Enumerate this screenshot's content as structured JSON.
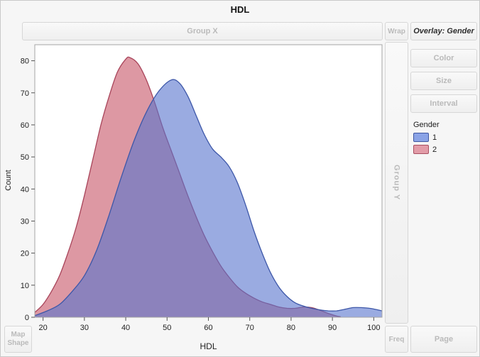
{
  "title": "HDL",
  "zones": {
    "group_x": "Group X",
    "wrap": "Wrap",
    "overlay": "Overlay: Gender",
    "color": "Color",
    "size": "Size",
    "interval": "Interval",
    "group_y": "Group Y",
    "map_shape": "Map Shape",
    "freq": "Freq",
    "page": "Page"
  },
  "axes": {
    "x_label": "HDL",
    "y_label": "Count"
  },
  "legend": {
    "title": "Gender",
    "items": [
      {
        "label": "1",
        "color": "#8AA3E6",
        "border": "#3F57A0"
      },
      {
        "label": "2",
        "color": "#E29CA8",
        "border": "#A84F61"
      }
    ]
  },
  "chart_data": {
    "type": "area",
    "title": "HDL",
    "xlabel": "HDL",
    "ylabel": "Count",
    "xlim": [
      18,
      102
    ],
    "ylim": [
      0,
      85
    ],
    "x_ticks": [
      20,
      30,
      40,
      50,
      60,
      70,
      80,
      90,
      100
    ],
    "y_ticks": [
      0,
      10,
      20,
      30,
      40,
      50,
      60,
      70,
      80
    ],
    "grid": false,
    "legend_title": "Gender",
    "legend_position": "right",
    "series": [
      {
        "name": "2",
        "fill": "rgba(198,83,101,0.6)",
        "stroke": "#A8445A",
        "points": [
          [
            18,
            1.5
          ],
          [
            20,
            4
          ],
          [
            22,
            8
          ],
          [
            24,
            13
          ],
          [
            26,
            20
          ],
          [
            28,
            28
          ],
          [
            30,
            38
          ],
          [
            32,
            49
          ],
          [
            34,
            60
          ],
          [
            36,
            69
          ],
          [
            38,
            76.5
          ],
          [
            40,
            80.5
          ],
          [
            41,
            81
          ],
          [
            43,
            79
          ],
          [
            45,
            74
          ],
          [
            47,
            67
          ],
          [
            49,
            59
          ],
          [
            51,
            52
          ],
          [
            53,
            45
          ],
          [
            55,
            38
          ],
          [
            57,
            31.5
          ],
          [
            59,
            25.5
          ],
          [
            61,
            20.5
          ],
          [
            63,
            16
          ],
          [
            65,
            12.5
          ],
          [
            67,
            9.5
          ],
          [
            69,
            7.5
          ],
          [
            71,
            6
          ],
          [
            73,
            4.8
          ],
          [
            75,
            4
          ],
          [
            77,
            3.2
          ],
          [
            79,
            2.8
          ],
          [
            81,
            2.8
          ],
          [
            83,
            3.2
          ],
          [
            85,
            3
          ],
          [
            87,
            2.2
          ],
          [
            89,
            1.2
          ],
          [
            91,
            0.4
          ],
          [
            92,
            0.15
          ]
        ]
      },
      {
        "name": "1",
        "fill": "rgba(86,115,205,0.6)",
        "stroke": "#3D57A8",
        "points": [
          [
            18,
            0.5
          ],
          [
            21,
            2
          ],
          [
            24,
            4
          ],
          [
            27,
            8
          ],
          [
            30,
            13
          ],
          [
            33,
            21
          ],
          [
            36,
            32
          ],
          [
            39,
            44
          ],
          [
            42,
            55
          ],
          [
            45,
            64
          ],
          [
            48,
            70.5
          ],
          [
            51,
            74
          ],
          [
            53,
            73
          ],
          [
            55,
            69
          ],
          [
            57,
            63
          ],
          [
            59,
            57
          ],
          [
            61,
            52.5
          ],
          [
            63,
            50
          ],
          [
            65,
            47
          ],
          [
            67,
            42
          ],
          [
            69,
            35
          ],
          [
            71,
            27
          ],
          [
            73,
            20
          ],
          [
            75,
            14
          ],
          [
            77,
            9.5
          ],
          [
            79,
            6.5
          ],
          [
            81,
            4.5
          ],
          [
            83,
            3.5
          ],
          [
            85,
            2.8
          ],
          [
            87,
            2.3
          ],
          [
            89,
            2
          ],
          [
            91,
            2
          ],
          [
            93,
            2.5
          ],
          [
            95,
            3
          ],
          [
            97,
            3
          ],
          [
            99,
            2.8
          ],
          [
            101,
            2.3
          ],
          [
            102,
            2
          ]
        ]
      }
    ]
  }
}
